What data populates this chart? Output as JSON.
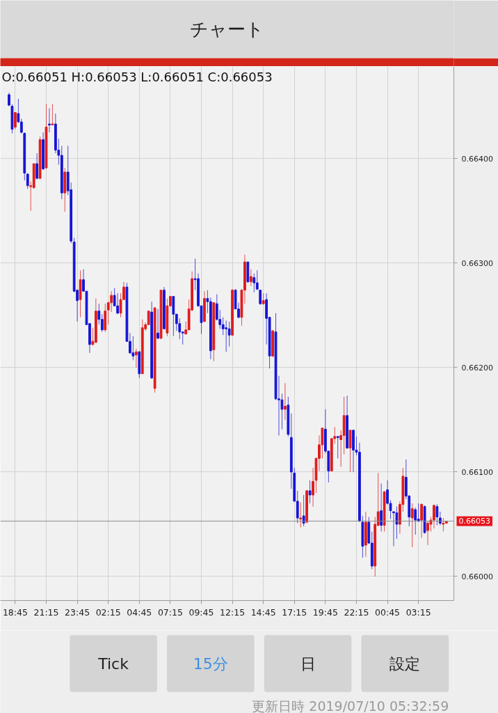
{
  "chart_data": {
    "type": "candlestick",
    "title": "チャート",
    "subtitle": "O:0.66051 H:0.66053 L:0.66051 C:0.66053",
    "annotations": [
      "Tick",
      "15分",
      "日",
      "設定",
      "更新日時 2019/07/10 05:32:59"
    ],
    "x": [
      "2019-07-08T18:15",
      "2019-07-08T18:30",
      "2019-07-08T18:45",
      "2019-07-08T19:00",
      "2019-07-08T19:15",
      "2019-07-08T19:30",
      "2019-07-08T19:45",
      "2019-07-08T20:00",
      "2019-07-08T20:15",
      "2019-07-08T20:30",
      "2019-07-08T20:45",
      "2019-07-08T21:00",
      "2019-07-08T21:15",
      "2019-07-08T21:30",
      "2019-07-08T21:45",
      "2019-07-08T22:00",
      "2019-07-08T22:15",
      "2019-07-08T22:30",
      "2019-07-08T22:45",
      "2019-07-08T23:00",
      "2019-07-08T23:15",
      "2019-07-08T23:30",
      "2019-07-08T23:45",
      "2019-07-09T00:00",
      "2019-07-09T00:15",
      "2019-07-09T00:30",
      "2019-07-09T00:45",
      "2019-07-09T01:00",
      "2019-07-09T01:15",
      "2019-07-09T01:30",
      "2019-07-09T01:45",
      "2019-07-09T02:00",
      "2019-07-09T02:15",
      "2019-07-09T02:30",
      "2019-07-09T02:45",
      "2019-07-09T03:00",
      "2019-07-09T03:15",
      "2019-07-09T03:30",
      "2019-07-09T03:45",
      "2019-07-09T04:00",
      "2019-07-09T04:15",
      "2019-07-09T04:30",
      "2019-07-09T04:45",
      "2019-07-09T05:00",
      "2019-07-09T05:15",
      "2019-07-09T05:30",
      "2019-07-09T05:45",
      "2019-07-09T06:00",
      "2019-07-09T06:15",
      "2019-07-09T06:30",
      "2019-07-09T06:45",
      "2019-07-09T07:00",
      "2019-07-09T07:15",
      "2019-07-09T07:30",
      "2019-07-09T07:45",
      "2019-07-09T08:00",
      "2019-07-09T08:15",
      "2019-07-09T08:30",
      "2019-07-09T08:45",
      "2019-07-09T09:00",
      "2019-07-09T09:15",
      "2019-07-09T09:30",
      "2019-07-09T09:45",
      "2019-07-09T10:00",
      "2019-07-09T10:15",
      "2019-07-09T10:30",
      "2019-07-09T10:45",
      "2019-07-09T11:00",
      "2019-07-09T11:15",
      "2019-07-09T11:30",
      "2019-07-09T11:45",
      "2019-07-09T12:00",
      "2019-07-09T12:15",
      "2019-07-09T12:30",
      "2019-07-09T12:45",
      "2019-07-09T13:00",
      "2019-07-09T13:15",
      "2019-07-09T13:30",
      "2019-07-09T13:45",
      "2019-07-09T14:00",
      "2019-07-09T14:15",
      "2019-07-09T14:30",
      "2019-07-09T14:45",
      "2019-07-09T15:00",
      "2019-07-09T15:15",
      "2019-07-09T15:30",
      "2019-07-09T15:45",
      "2019-07-09T16:00",
      "2019-07-09T16:15",
      "2019-07-09T16:30",
      "2019-07-09T16:45",
      "2019-07-09T17:00",
      "2019-07-09T17:15",
      "2019-07-09T17:30",
      "2019-07-09T17:45",
      "2019-07-09T18:00",
      "2019-07-09T18:15",
      "2019-07-09T18:30",
      "2019-07-09T18:45",
      "2019-07-09T19:00",
      "2019-07-09T19:15",
      "2019-07-09T19:30",
      "2019-07-09T19:45",
      "2019-07-09T20:00",
      "2019-07-09T20:15",
      "2019-07-09T20:30",
      "2019-07-09T20:45",
      "2019-07-09T21:00",
      "2019-07-09T21:15",
      "2019-07-09T21:30",
      "2019-07-09T21:45",
      "2019-07-09T22:00",
      "2019-07-09T22:15",
      "2019-07-09T22:30",
      "2019-07-09T22:45",
      "2019-07-09T23:00",
      "2019-07-09T23:15",
      "2019-07-09T23:30",
      "2019-07-09T23:45",
      "2019-07-10T00:00",
      "2019-07-10T00:15",
      "2019-07-10T00:30",
      "2019-07-10T00:45",
      "2019-07-10T01:00",
      "2019-07-10T01:15",
      "2019-07-10T01:30",
      "2019-07-10T01:45",
      "2019-07-10T02:00",
      "2019-07-10T02:15",
      "2019-07-10T02:30",
      "2019-07-10T02:45",
      "2019-07-10T03:00",
      "2019-07-10T03:15",
      "2019-07-10T03:30",
      "2019-07-10T03:45",
      "2019-07-10T04:00",
      "2019-07-10T04:15",
      "2019-07-10T04:30",
      "2019-07-10T04:45",
      "2019-07-10T05:00",
      "2019-07-10T05:15",
      "2019-07-10T05:30"
    ],
    "ohlc": [
      [
        0.66461,
        0.66463,
        0.6645,
        0.66451
      ],
      [
        0.6645,
        0.66452,
        0.66424,
        0.66428
      ],
      [
        0.6643,
        0.66444,
        0.66428,
        0.66444
      ],
      [
        0.66443,
        0.66457,
        0.66434,
        0.66435
      ],
      [
        0.66435,
        0.66438,
        0.66424,
        0.66425
      ],
      [
        0.66424,
        0.66425,
        0.66379,
        0.66386
      ],
      [
        0.66385,
        0.66386,
        0.66371,
        0.66374
      ],
      [
        0.66373,
        0.66378,
        0.6635,
        0.66374
      ],
      [
        0.66372,
        0.66395,
        0.66371,
        0.66395
      ],
      [
        0.66395,
        0.66405,
        0.6638,
        0.66381
      ],
      [
        0.66381,
        0.66421,
        0.6638,
        0.66418
      ],
      [
        0.66418,
        0.66425,
        0.66389,
        0.6639
      ],
      [
        0.66391,
        0.66452,
        0.6639,
        0.6643
      ],
      [
        0.66433,
        0.66448,
        0.66425,
        0.66432
      ],
      [
        0.66432,
        0.66452,
        0.66432,
        0.66433
      ],
      [
        0.66433,
        0.66443,
        0.66405,
        0.66408
      ],
      [
        0.66408,
        0.66419,
        0.66394,
        0.66403
      ],
      [
        0.66403,
        0.66412,
        0.66361,
        0.66367
      ],
      [
        0.66367,
        0.66391,
        0.66349,
        0.66387
      ],
      [
        0.66387,
        0.66412,
        0.66365,
        0.66369
      ],
      [
        0.6637,
        0.66377,
        0.66319,
        0.66321
      ],
      [
        0.6632,
        0.66324,
        0.66272,
        0.66273
      ],
      [
        0.66274,
        0.66274,
        0.66244,
        0.66264
      ],
      [
        0.66265,
        0.66293,
        0.66248,
        0.66284
      ],
      [
        0.66284,
        0.66294,
        0.66273,
        0.66273
      ],
      [
        0.66273,
        0.66273,
        0.66241,
        0.66241
      ],
      [
        0.66242,
        0.66242,
        0.66214,
        0.66222
      ],
      [
        0.66222,
        0.66238,
        0.66221,
        0.66225
      ],
      [
        0.66224,
        0.66266,
        0.66224,
        0.66254
      ],
      [
        0.66254,
        0.66261,
        0.66241,
        0.66246
      ],
      [
        0.66246,
        0.66251,
        0.66234,
        0.66236
      ],
      [
        0.66236,
        0.66261,
        0.66234,
        0.66254
      ],
      [
        0.66255,
        0.66263,
        0.66241,
        0.66262
      ],
      [
        0.66262,
        0.66273,
        0.66253,
        0.66269
      ],
      [
        0.66269,
        0.66276,
        0.66259,
        0.66259
      ],
      [
        0.66259,
        0.66271,
        0.66251,
        0.66252
      ],
      [
        0.66252,
        0.66271,
        0.66248,
        0.66265
      ],
      [
        0.66265,
        0.66282,
        0.66265,
        0.66277
      ],
      [
        0.66277,
        0.66281,
        0.66225,
        0.66225
      ],
      [
        0.66225,
        0.66233,
        0.66213,
        0.66214
      ],
      [
        0.66214,
        0.6623,
        0.66207,
        0.66211
      ],
      [
        0.66212,
        0.66218,
        0.662,
        0.66215
      ],
      [
        0.66215,
        0.66216,
        0.6619,
        0.66194
      ],
      [
        0.66194,
        0.66246,
        0.66194,
        0.66238
      ],
      [
        0.66237,
        0.66243,
        0.66235,
        0.66241
      ],
      [
        0.66241,
        0.66254,
        0.66241,
        0.66254
      ],
      [
        0.66253,
        0.66263,
        0.66189,
        0.6619
      ],
      [
        0.6618,
        0.66258,
        0.66176,
        0.66257
      ],
      [
        0.66233,
        0.66256,
        0.66227,
        0.66228
      ],
      [
        0.66228,
        0.66274,
        0.66227,
        0.66274
      ],
      [
        0.66274,
        0.66277,
        0.66237,
        0.66237
      ],
      [
        0.66233,
        0.66266,
        0.6623,
        0.66259
      ],
      [
        0.66259,
        0.66268,
        0.66258,
        0.66268
      ],
      [
        0.66268,
        0.66268,
        0.6623,
        0.66251
      ],
      [
        0.66251,
        0.66251,
        0.66235,
        0.66242
      ],
      [
        0.66242,
        0.66247,
        0.66227,
        0.66234
      ],
      [
        0.66234,
        0.66234,
        0.66222,
        0.66233
      ],
      [
        0.66232,
        0.66244,
        0.66232,
        0.66236
      ],
      [
        0.66236,
        0.66265,
        0.66236,
        0.66256
      ],
      [
        0.66255,
        0.66292,
        0.66254,
        0.66285
      ],
      [
        0.66285,
        0.66304,
        0.66274,
        0.66284
      ],
      [
        0.66285,
        0.6629,
        0.66258,
        0.66259
      ],
      [
        0.66259,
        0.66259,
        0.66232,
        0.66243
      ],
      [
        0.66244,
        0.66273,
        0.66244,
        0.66266
      ],
      [
        0.66266,
        0.66274,
        0.66252,
        0.66263
      ],
      [
        0.66263,
        0.66267,
        0.66208,
        0.66216
      ],
      [
        0.66217,
        0.66262,
        0.66206,
        0.66262
      ],
      [
        0.66261,
        0.6627,
        0.66245,
        0.66246
      ],
      [
        0.66246,
        0.66255,
        0.66237,
        0.66241
      ],
      [
        0.66241,
        0.66248,
        0.66231,
        0.66237
      ],
      [
        0.66238,
        0.66245,
        0.66215,
        0.66237
      ],
      [
        0.66237,
        0.66244,
        0.6622,
        0.66231
      ],
      [
        0.66231,
        0.66275,
        0.6623,
        0.66274
      ],
      [
        0.66274,
        0.66275,
        0.66256,
        0.66256
      ],
      [
        0.66256,
        0.66262,
        0.66247,
        0.66248
      ],
      [
        0.66248,
        0.66275,
        0.6624,
        0.66274
      ],
      [
        0.66274,
        0.66308,
        0.66261,
        0.66301
      ],
      [
        0.66301,
        0.66301,
        0.66281,
        0.66282
      ],
      [
        0.66282,
        0.66294,
        0.66278,
        0.66287
      ],
      [
        0.66286,
        0.6629,
        0.66272,
        0.66281
      ],
      [
        0.66281,
        0.66293,
        0.66274,
        0.66275
      ],
      [
        0.66274,
        0.66274,
        0.6626,
        0.66261
      ],
      [
        0.66261,
        0.66271,
        0.6626,
        0.66264
      ],
      [
        0.66265,
        0.66271,
        0.66222,
        0.66247
      ],
      [
        0.66248,
        0.66248,
        0.66199,
        0.66211
      ],
      [
        0.66211,
        0.66236,
        0.6621,
        0.66235
      ],
      [
        0.66234,
        0.66252,
        0.66169,
        0.6617
      ],
      [
        0.6617,
        0.66192,
        0.66135,
        0.66169
      ],
      [
        0.66169,
        0.66175,
        0.66141,
        0.6616
      ],
      [
        0.6616,
        0.66185,
        0.6615,
        0.66163
      ],
      [
        0.66164,
        0.66172,
        0.66134,
        0.66136
      ],
      [
        0.66133,
        0.66156,
        0.66084,
        0.661
      ],
      [
        0.66099,
        0.66104,
        0.66072,
        0.66072
      ],
      [
        0.66072,
        0.66082,
        0.66051,
        0.66056
      ],
      [
        0.66055,
        0.66071,
        0.66047,
        0.66056
      ],
      [
        0.66058,
        0.66078,
        0.66048,
        0.66051
      ],
      [
        0.66052,
        0.66083,
        0.66051,
        0.66082
      ],
      [
        0.66082,
        0.66092,
        0.6607,
        0.66078
      ],
      [
        0.66078,
        0.66104,
        0.66067,
        0.66091
      ],
      [
        0.66092,
        0.66114,
        0.6608,
        0.66113
      ],
      [
        0.66113,
        0.66135,
        0.66101,
        0.66126
      ],
      [
        0.66126,
        0.66142,
        0.66113,
        0.66142
      ],
      [
        0.66141,
        0.6616,
        0.66118,
        0.6612
      ],
      [
        0.6612,
        0.6612,
        0.6609,
        0.66101
      ],
      [
        0.66101,
        0.66132,
        0.66101,
        0.66132
      ],
      [
        0.66132,
        0.66143,
        0.66127,
        0.66134
      ],
      [
        0.66134,
        0.66134,
        0.66113,
        0.66133
      ],
      [
        0.66131,
        0.6614,
        0.66105,
        0.66135
      ],
      [
        0.66135,
        0.66172,
        0.66117,
        0.66154
      ],
      [
        0.66154,
        0.66173,
        0.66122,
        0.66123
      ],
      [
        0.66123,
        0.6614,
        0.661,
        0.6614
      ],
      [
        0.6614,
        0.6614,
        0.661,
        0.66121
      ],
      [
        0.66121,
        0.66134,
        0.66116,
        0.66119
      ],
      [
        0.66119,
        0.66128,
        0.66052,
        0.66053
      ],
      [
        0.66052,
        0.66058,
        0.66018,
        0.66029
      ],
      [
        0.6603,
        0.66062,
        0.66019,
        0.66052
      ],
      [
        0.66052,
        0.66057,
        0.66031,
        0.66032
      ],
      [
        0.66032,
        0.66043,
        0.66007,
        0.6601
      ],
      [
        0.6601,
        0.66057,
        0.66,
        0.6605
      ],
      [
        0.66049,
        0.66099,
        0.66048,
        0.66062
      ],
      [
        0.66063,
        0.66089,
        0.66043,
        0.66049
      ],
      [
        0.66049,
        0.66082,
        0.66043,
        0.66081
      ],
      [
        0.66083,
        0.66092,
        0.66069,
        0.6607
      ],
      [
        0.6607,
        0.66073,
        0.66055,
        0.66063
      ],
      [
        0.66062,
        0.66062,
        0.66029,
        0.66061
      ],
      [
        0.66061,
        0.66067,
        0.66036,
        0.6605
      ],
      [
        0.6605,
        0.66072,
        0.66041,
        0.66069
      ],
      [
        0.66069,
        0.66104,
        0.66062,
        0.66096
      ],
      [
        0.66095,
        0.66112,
        0.66074,
        0.66077
      ],
      [
        0.66077,
        0.66078,
        0.66048,
        0.66057
      ],
      [
        0.66056,
        0.6607,
        0.66028,
        0.66065
      ],
      [
        0.66064,
        0.66066,
        0.6604,
        0.66054
      ],
      [
        0.66055,
        0.6607,
        0.66052,
        0.66053
      ],
      [
        0.66054,
        0.6607,
        0.66037,
        0.66069
      ],
      [
        0.66067,
        0.66068,
        0.66041,
        0.66042
      ],
      [
        0.66044,
        0.66053,
        0.6603,
        0.66051
      ],
      [
        0.6605,
        0.66057,
        0.66043,
        0.66054
      ],
      [
        0.66054,
        0.66069,
        0.66046,
        0.66068
      ],
      [
        0.66067,
        0.66069,
        0.66049,
        0.66057
      ],
      [
        0.66056,
        0.66062,
        0.66049,
        0.66051
      ],
      [
        0.6605,
        0.66056,
        0.66043,
        0.66051
      ],
      [
        0.66051,
        0.66053,
        0.66051,
        0.66053
      ]
    ],
    "colors": [
      "#1515d5",
      "#1515d5",
      "#e01b1b",
      "#1515d5",
      "#1515d5",
      "#1515d5",
      "#1515d5",
      "#e01b1b",
      "#e01b1b",
      "#1515d5",
      "#e01b1b",
      "#1515d5",
      "#e01b1b",
      "#1515d5",
      "#e01b1b",
      "#1515d5",
      "#1515d5",
      "#1515d5",
      "#e01b1b",
      "#1515d5",
      "#1515d5",
      "#1515d5",
      "#1515d5",
      "#e01b1b",
      "#1515d5",
      "#1515d5",
      "#1515d5",
      "#e01b1b",
      "#e01b1b",
      "#1515d5",
      "#1515d5",
      "#e01b1b",
      "#e01b1b",
      "#e01b1b",
      "#1515d5",
      "#1515d5",
      "#e01b1b",
      "#e01b1b",
      "#1515d5",
      "#1515d5",
      "#1515d5",
      "#e01b1b",
      "#1515d5",
      "#e01b1b",
      "#e01b1b",
      "#e01b1b",
      "#1515d5",
      "#e01b1b",
      "#1515d5",
      "#e01b1b",
      "#1515d5",
      "#e01b1b",
      "#e01b1b",
      "#1515d5",
      "#1515d5",
      "#1515d5",
      "#1515d5",
      "#e01b1b",
      "#e01b1b",
      "#e01b1b",
      "#1515d5",
      "#1515d5",
      "#1515d5",
      "#e01b1b",
      "#1515d5",
      "#1515d5",
      "#e01b1b",
      "#1515d5",
      "#1515d5",
      "#1515d5",
      "#1515d5",
      "#1515d5",
      "#e01b1b",
      "#1515d5",
      "#1515d5",
      "#e01b1b",
      "#e01b1b",
      "#1515d5",
      "#e01b1b",
      "#1515d5",
      "#1515d5",
      "#1515d5",
      "#e01b1b",
      "#1515d5",
      "#1515d5",
      "#e01b1b",
      "#1515d5",
      "#1515d5",
      "#1515d5",
      "#e01b1b",
      "#1515d5",
      "#1515d5",
      "#1515d5",
      "#1515d5",
      "#e01b1b",
      "#1515d5",
      "#e01b1b",
      "#1515d5",
      "#e01b1b",
      "#e01b1b",
      "#e01b1b",
      "#e01b1b",
      "#1515d5",
      "#1515d5",
      "#e01b1b",
      "#e01b1b",
      "#1515d5",
      "#e01b1b",
      "#e01b1b",
      "#1515d5",
      "#e01b1b",
      "#1515d5",
      "#1515d5",
      "#1515d5",
      "#1515d5",
      "#e01b1b",
      "#1515d5",
      "#1515d5",
      "#e01b1b",
      "#e01b1b",
      "#1515d5",
      "#e01b1b",
      "#1515d5",
      "#1515d5",
      "#1515d5",
      "#1515d5",
      "#e01b1b",
      "#e01b1b",
      "#1515d5",
      "#1515d5",
      "#e01b1b",
      "#1515d5",
      "#1515d5",
      "#e01b1b",
      "#1515d5",
      "#e01b1b",
      "#e01b1b",
      "#e01b1b",
      "#1515d5",
      "#1515d5",
      "#e01b1b",
      "#e01b1b"
    ],
    "xlim": [
      "2019-07-08T17:33",
      "2019-07-10T06:06"
    ],
    "ylim": [
      0.65977,
      0.66488
    ],
    "xticks": [
      {
        "value": "2019-07-08T18:45",
        "label": "18:45"
      },
      {
        "value": "2019-07-08T21:15",
        "label": "21:15"
      },
      {
        "value": "2019-07-08T23:45",
        "label": "23:45"
      },
      {
        "value": "2019-07-09T02:15",
        "label": "02:15"
      },
      {
        "value": "2019-07-09T04:45",
        "label": "04:45"
      },
      {
        "value": "2019-07-09T07:15",
        "label": "07:15"
      },
      {
        "value": "2019-07-09T09:45",
        "label": "09:45"
      },
      {
        "value": "2019-07-09T12:15",
        "label": "12:15"
      },
      {
        "value": "2019-07-09T14:45",
        "label": "14:45"
      },
      {
        "value": "2019-07-09T17:15",
        "label": "17:15"
      },
      {
        "value": "2019-07-09T19:45",
        "label": "19:45"
      },
      {
        "value": "2019-07-09T22:15",
        "label": "22:15"
      },
      {
        "value": "2019-07-10T00:45",
        "label": "00:45"
      },
      {
        "value": "2019-07-10T03:15",
        "label": "03:15"
      }
    ],
    "yticks": [
      {
        "value": 0.66,
        "label": "0.66000"
      },
      {
        "value": 0.661,
        "label": "0.66100"
      },
      {
        "value": 0.662,
        "label": "0.66200"
      },
      {
        "value": 0.663,
        "label": "0.66300"
      },
      {
        "value": 0.664,
        "label": "0.66400"
      }
    ],
    "grid": true,
    "ref_lines": [
      {
        "axis": "y",
        "value": 0.66053,
        "label": "0.66053",
        "color": "#8c8c8c"
      }
    ]
  }
}
